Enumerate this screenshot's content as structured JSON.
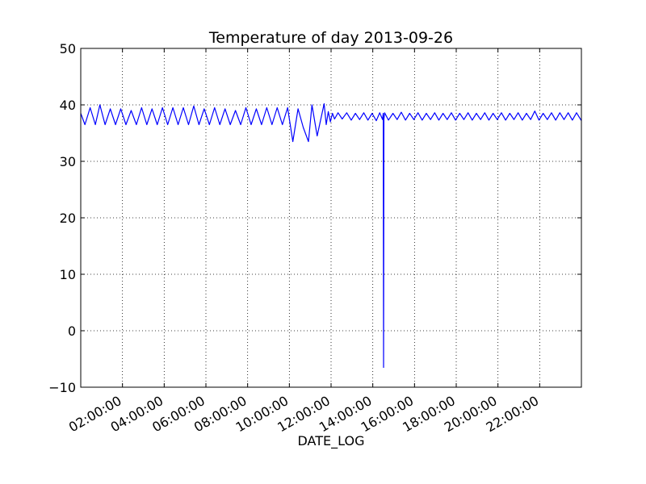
{
  "chart_data": {
    "type": "line",
    "title": "Temperature of day  2013-09-26",
    "xlabel": "DATE_LOG",
    "ylabel": "",
    "xlim": [
      "2013-09-26 00:00:00",
      "2013-09-26 24:00:00"
    ],
    "ylim": [
      -10,
      50
    ],
    "grid": true,
    "x_tick_labels": [
      "02:00:00",
      "04:00:00",
      "06:00:00",
      "08:00:00",
      "10:00:00",
      "12:00:00",
      "14:00:00",
      "16:00:00",
      "18:00:00",
      "20:00:00",
      "22:00:00"
    ],
    "y_tick_labels": [
      "−10",
      "0",
      "10",
      "20",
      "30",
      "40",
      "50"
    ],
    "series": [
      {
        "color": "#0000ff",
        "x": [
          "00:00",
          "00:12",
          "00:27",
          "00:42",
          "00:55",
          "01:10",
          "01:25",
          "01:40",
          "01:55",
          "02:10",
          "02:25",
          "02:40",
          "02:55",
          "03:10",
          "03:25",
          "03:40",
          "03:55",
          "04:10",
          "04:25",
          "04:40",
          "04:55",
          "05:10",
          "05:25",
          "05:40",
          "05:55",
          "06:10",
          "06:25",
          "06:40",
          "06:55",
          "07:10",
          "07:25",
          "07:40",
          "07:55",
          "08:10",
          "08:25",
          "08:40",
          "08:55",
          "09:10",
          "09:25",
          "09:40",
          "09:55",
          "10:10",
          "10:25",
          "10:40",
          "10:55",
          "11:05",
          "11:20",
          "11:40",
          "11:46",
          "11:52",
          "11:58",
          "12:04",
          "12:10",
          "12:20",
          "12:32",
          "12:45",
          "12:58",
          "13:10",
          "13:22",
          "13:34",
          "13:46",
          "13:58",
          "14:10",
          "14:20",
          "14:28",
          "14:30",
          "14:31",
          "14:32",
          "14:34",
          "14:45",
          "14:58",
          "15:10",
          "15:22",
          "15:34",
          "15:46",
          "15:58",
          "16:10",
          "16:22",
          "16:34",
          "16:46",
          "16:58",
          "17:10",
          "17:22",
          "17:34",
          "17:46",
          "17:58",
          "18:10",
          "18:22",
          "18:34",
          "18:46",
          "18:58",
          "19:10",
          "19:22",
          "19:34",
          "19:46",
          "19:58",
          "20:10",
          "20:22",
          "20:34",
          "20:46",
          "20:58",
          "21:10",
          "21:22",
          "21:34",
          "21:46",
          "21:58",
          "22:10",
          "22:22",
          "22:34",
          "22:46",
          "22:58",
          "23:10",
          "23:22",
          "23:34",
          "23:46",
          "24:00"
        ],
        "y": [
          38.5,
          36.5,
          39.5,
          36.5,
          40.0,
          36.5,
          39.3,
          36.5,
          39.3,
          36.5,
          39.0,
          36.5,
          39.5,
          36.5,
          39.3,
          36.5,
          39.5,
          36.5,
          39.5,
          36.5,
          39.5,
          36.5,
          39.8,
          36.5,
          39.3,
          36.5,
          39.5,
          36.5,
          39.3,
          36.5,
          39.0,
          36.5,
          39.5,
          36.5,
          39.3,
          36.5,
          39.5,
          36.5,
          39.5,
          36.5,
          39.5,
          33.5,
          39.3,
          36.0,
          33.5,
          40.0,
          34.5,
          40.2,
          36.5,
          38.8,
          37.0,
          38.5,
          37.5,
          38.6,
          37.5,
          38.6,
          37.3,
          38.5,
          37.4,
          38.6,
          37.3,
          38.5,
          37.2,
          38.6,
          37.4,
          38.5,
          -6.5,
          37.5,
          38.6,
          37.3,
          38.5,
          37.4,
          38.7,
          37.3,
          38.5,
          37.4,
          38.6,
          37.3,
          38.5,
          37.4,
          38.6,
          37.3,
          38.5,
          37.4,
          38.6,
          37.3,
          38.5,
          37.4,
          38.6,
          37.3,
          38.5,
          37.4,
          38.6,
          37.3,
          38.5,
          37.4,
          38.6,
          37.3,
          38.5,
          37.4,
          38.6,
          37.3,
          38.5,
          37.4,
          38.9,
          37.3,
          38.5,
          37.4,
          38.6,
          37.3,
          38.6,
          37.4,
          38.6,
          37.3,
          38.6,
          37.2
        ]
      }
    ]
  }
}
